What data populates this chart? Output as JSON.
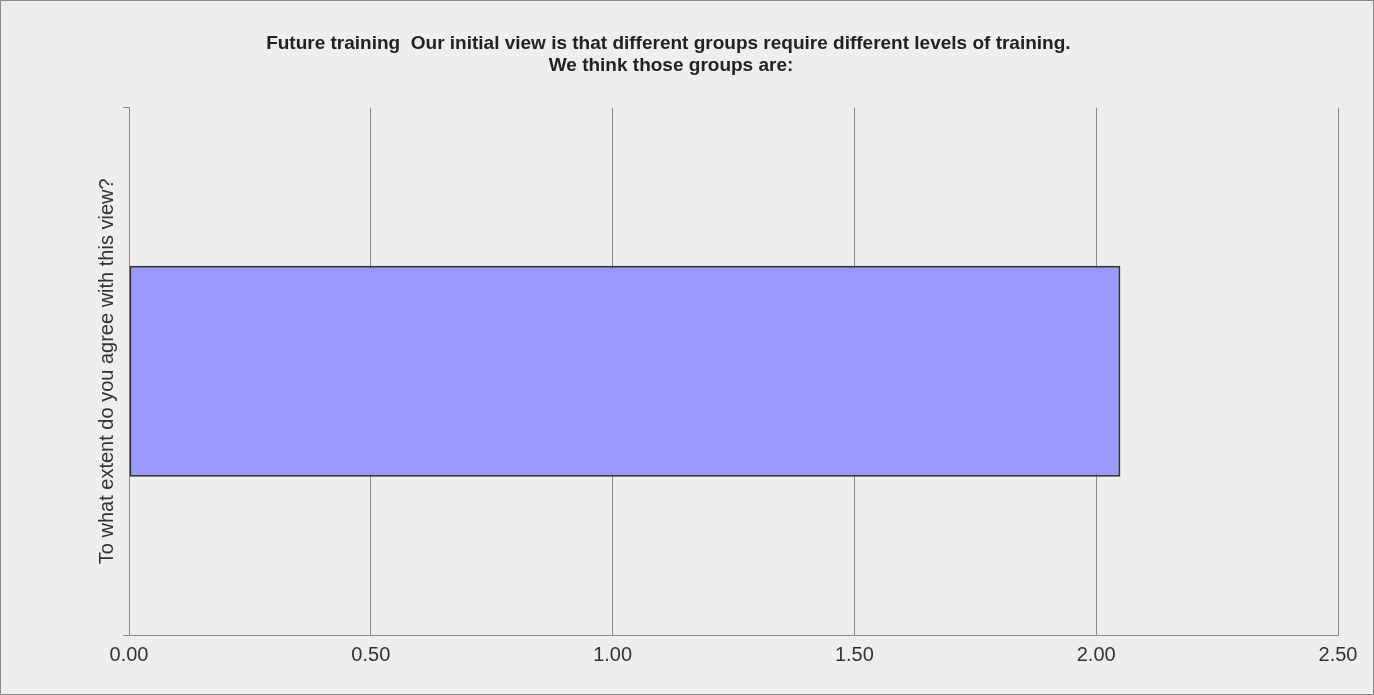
{
  "chart_data": {
    "type": "bar",
    "orientation": "horizontal",
    "title": "Future training  Our initial view is that different groups require different levels of training.  We think those groups are:",
    "categories": [
      "To what extent do you agree with this view?"
    ],
    "series": [
      {
        "color": "#9999ff",
        "values": [
          2.05
        ]
      }
    ],
    "xlim": [
      0,
      2.5
    ],
    "xticks": [
      {
        "value": 0,
        "label": "0.00"
      },
      {
        "value": 0.5,
        "label": "0.50"
      },
      {
        "value": 1,
        "label": "1.00"
      },
      {
        "value": 1.5,
        "label": "1.50"
      },
      {
        "value": 2,
        "label": "2.00"
      },
      {
        "value": 2.5,
        "label": "2.50"
      }
    ],
    "grid": "x",
    "legend": false
  }
}
